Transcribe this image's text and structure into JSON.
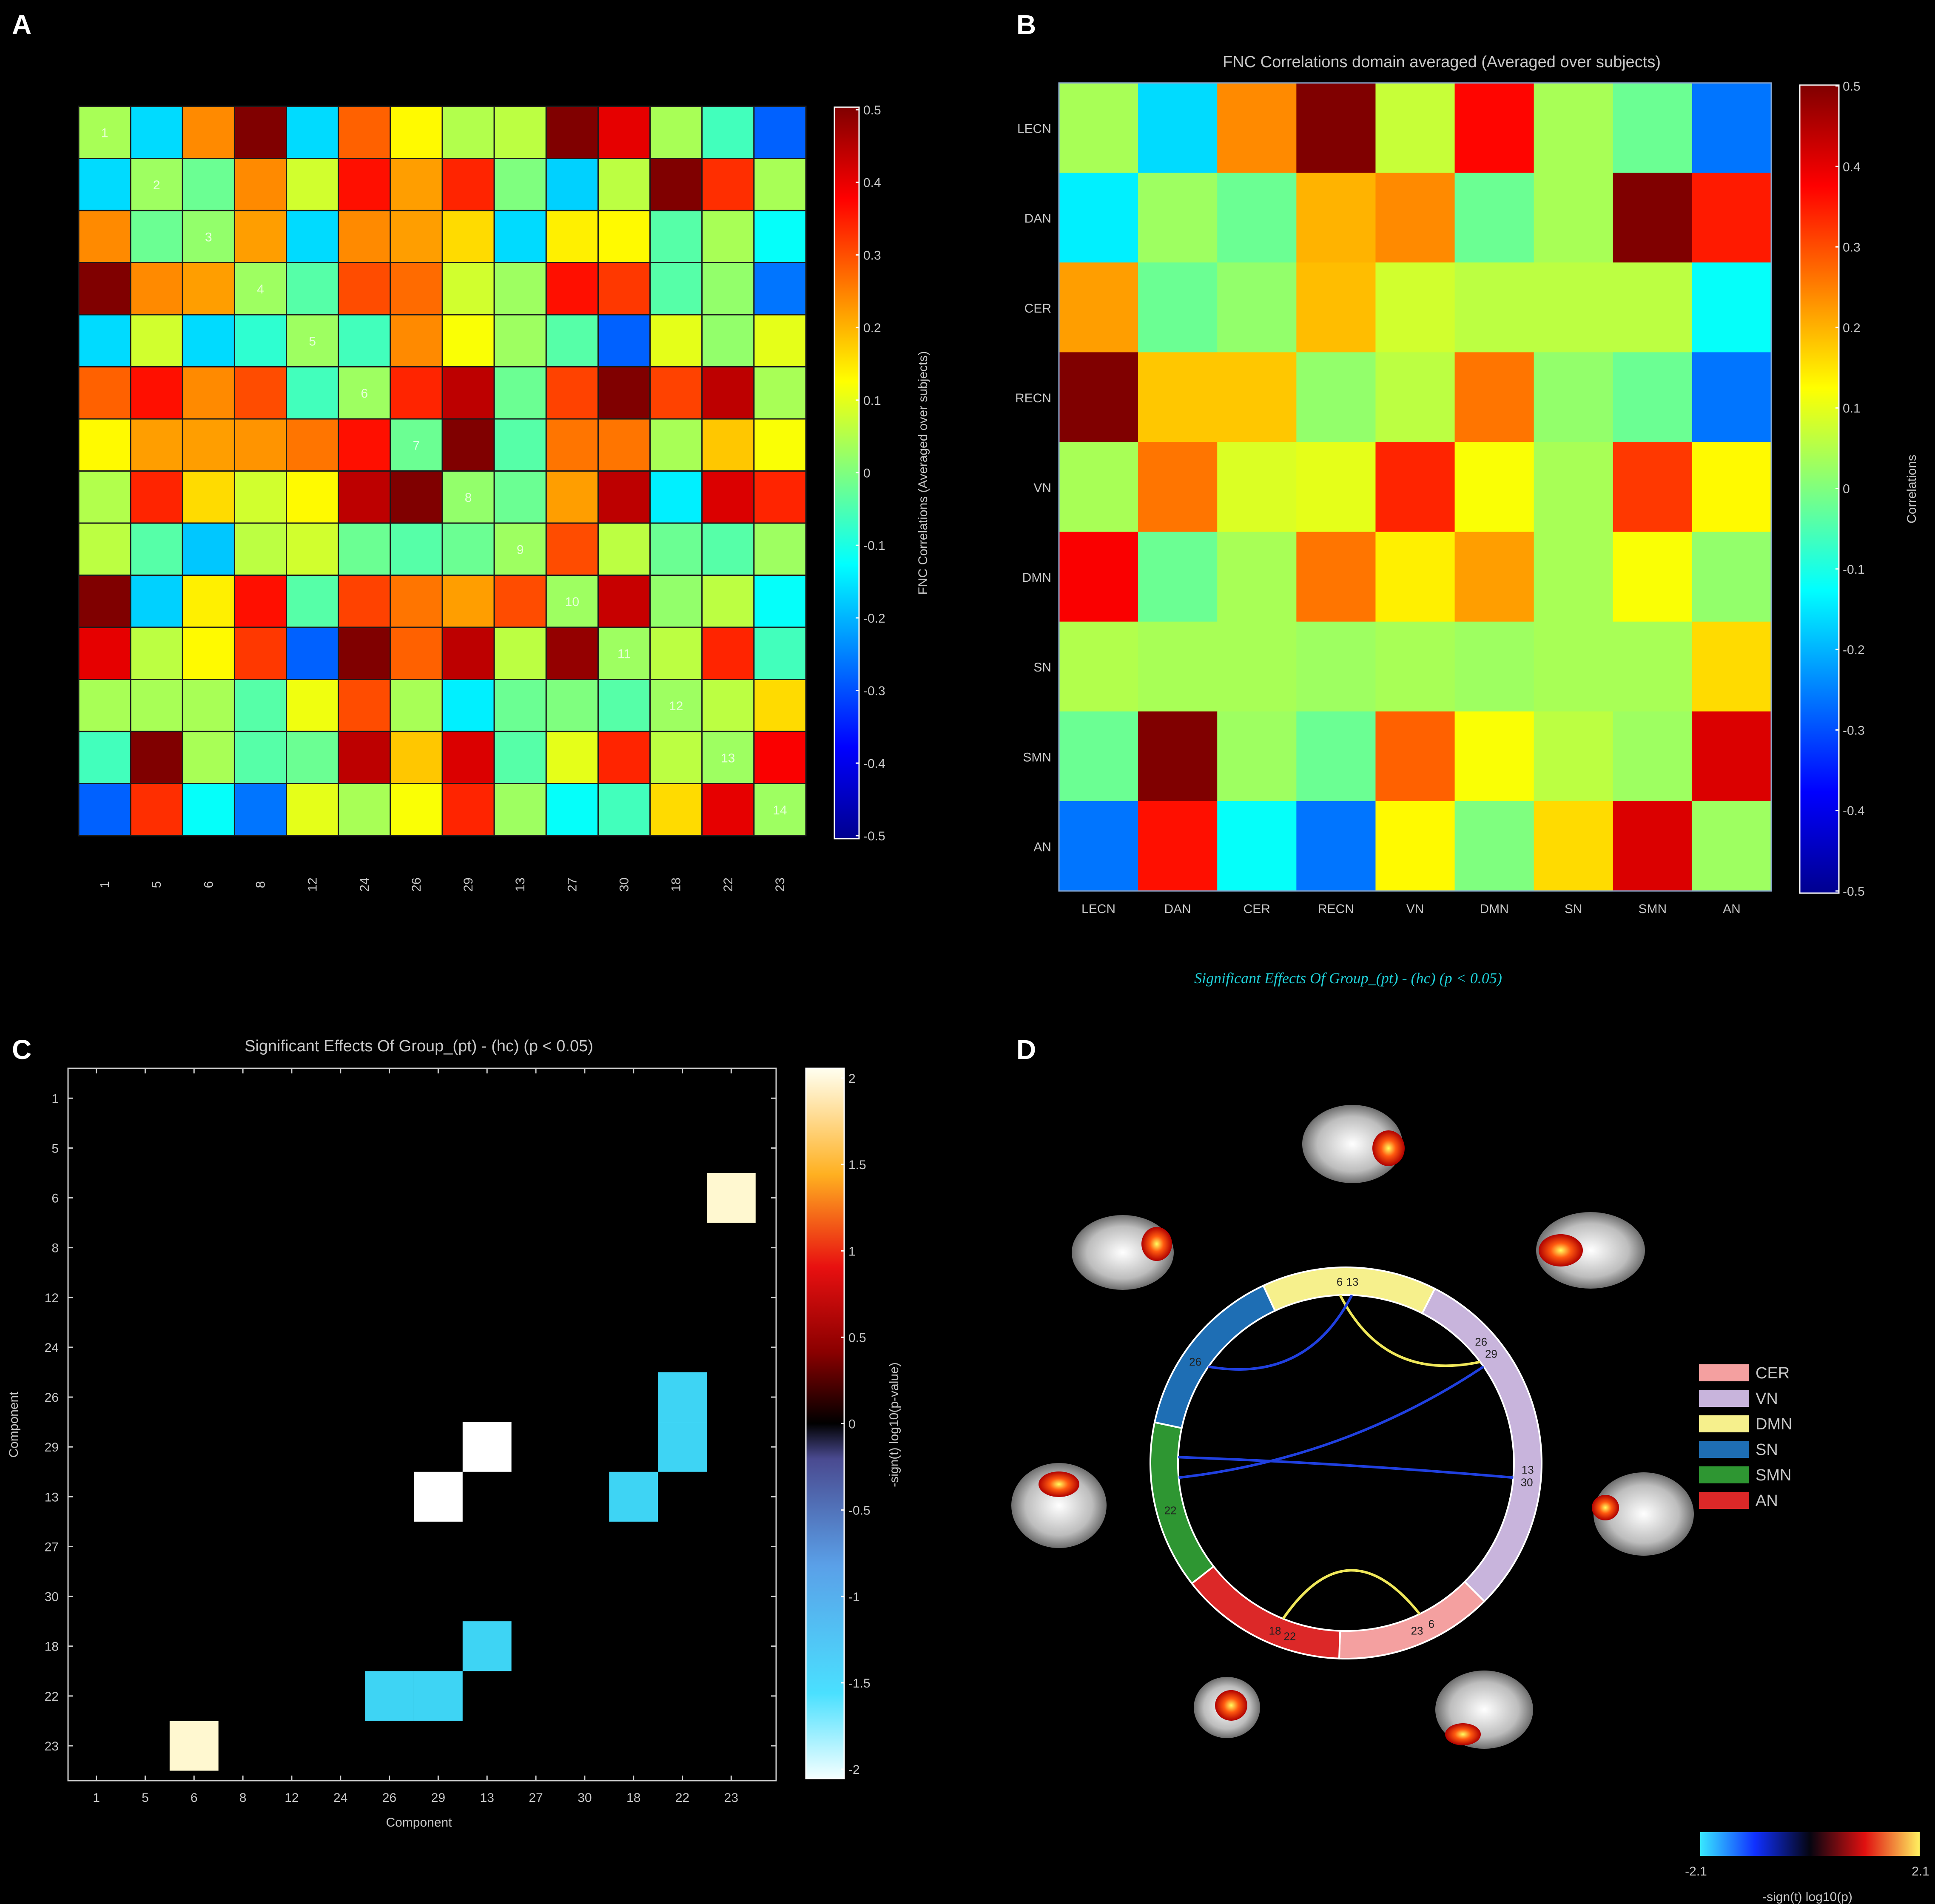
{
  "panels": {
    "a": "A",
    "b": "B",
    "c": "C",
    "d": "D"
  },
  "colors": {
    "background": "#000000",
    "cell_grid_a": "#202020",
    "cell_grid_b": "none"
  },
  "chart_data": [
    {
      "id": "A",
      "type": "heatmap",
      "title": "",
      "components": [
        "1",
        "5",
        "6",
        "8",
        "12",
        "24",
        "26",
        "29",
        "13",
        "27",
        "30",
        "18",
        "22",
        "23"
      ],
      "xlabel": "",
      "ylabel": "",
      "colorbar": {
        "label": "FNC Correlations (Averaged over subjects)",
        "range": [
          -0.5,
          0.5
        ],
        "ticks": [
          "0.5",
          "0.4",
          "0.3",
          "0.2",
          "0.1",
          "0",
          "-0.1",
          "-0.2",
          "-0.3",
          "-0.4",
          "-0.5"
        ],
        "colormap": "jet"
      },
      "diagonal_labels": [
        "1",
        "2",
        "3",
        "4",
        "5",
        "6",
        "7",
        "8",
        "9",
        "10",
        "11",
        "12",
        "13",
        "14"
      ],
      "values": [
        [
          0.04,
          -0.16,
          0.24,
          0.5,
          -0.16,
          0.28,
          0.13,
          0.05,
          0.06,
          0.5,
          0.4,
          0.04,
          -0.06,
          -0.28
        ],
        [
          -0.16,
          0.03,
          -0.02,
          0.24,
          0.08,
          0.36,
          0.22,
          0.34,
          0.0,
          -0.17,
          0.06,
          0.5,
          0.33,
          0.04
        ],
        [
          0.24,
          -0.02,
          0.02,
          0.22,
          -0.16,
          0.24,
          0.22,
          0.16,
          -0.16,
          0.14,
          0.13,
          -0.04,
          0.04,
          -0.12
        ],
        [
          0.5,
          0.24,
          0.22,
          0.03,
          -0.04,
          0.3,
          0.27,
          0.08,
          0.03,
          0.36,
          0.32,
          -0.04,
          0.02,
          -0.26
        ],
        [
          -0.16,
          0.08,
          -0.16,
          -0.08,
          0.03,
          -0.06,
          0.24,
          0.12,
          0.03,
          -0.04,
          -0.28,
          0.1,
          0.02,
          0.1
        ],
        [
          0.28,
          0.36,
          0.24,
          0.3,
          -0.06,
          0.03,
          0.34,
          0.44,
          -0.02,
          0.31,
          0.5,
          0.31,
          0.44,
          0.04
        ],
        [
          0.13,
          0.22,
          0.22,
          0.23,
          0.26,
          0.36,
          -0.02,
          0.5,
          -0.04,
          0.26,
          0.26,
          0.04,
          0.18,
          0.12
        ],
        [
          0.05,
          0.34,
          0.16,
          0.08,
          0.13,
          0.44,
          0.5,
          0.02,
          -0.02,
          0.22,
          0.44,
          -0.14,
          0.41,
          0.34
        ],
        [
          0.06,
          -0.04,
          -0.18,
          0.06,
          0.08,
          -0.02,
          -0.04,
          -0.02,
          0.03,
          0.3,
          0.06,
          -0.02,
          -0.04,
          0.03
        ],
        [
          0.5,
          -0.17,
          0.14,
          0.36,
          -0.04,
          0.31,
          0.26,
          0.22,
          0.3,
          0.03,
          0.43,
          0.02,
          0.06,
          -0.12
        ],
        [
          0.4,
          0.06,
          0.13,
          0.32,
          -0.28,
          0.5,
          0.28,
          0.44,
          0.06,
          0.48,
          0.03,
          0.06,
          0.34,
          -0.06
        ],
        [
          0.04,
          0.04,
          0.04,
          -0.04,
          0.11,
          0.3,
          0.04,
          -0.14,
          -0.02,
          0.0,
          -0.04,
          0.03,
          0.06,
          0.16
        ],
        [
          -0.06,
          0.5,
          0.04,
          -0.04,
          -0.02,
          0.44,
          0.18,
          0.41,
          -0.04,
          0.1,
          0.34,
          0.06,
          0.03,
          0.38
        ],
        [
          -0.28,
          0.33,
          -0.12,
          -0.26,
          0.1,
          0.04,
          0.12,
          0.34,
          0.03,
          -0.12,
          -0.06,
          0.16,
          0.4,
          0.03
        ]
      ]
    },
    {
      "id": "B",
      "type": "heatmap",
      "title": "FNC Correlations domain averaged (Averaged over subjects)",
      "rows": [
        "LECN",
        "DAN",
        "CER",
        "RECN",
        "VN",
        "DMN",
        "SN",
        "SMN",
        "AN"
      ],
      "columns": [
        "LECN",
        "DAN",
        "CER",
        "RECN",
        "VN",
        "DMN",
        "SN",
        "SMN",
        "AN"
      ],
      "colorbar": {
        "label": "Correlations",
        "range": [
          -0.5,
          0.5
        ],
        "ticks": [
          "0.5",
          "0.4",
          "0.3",
          "0.2",
          "0.1",
          "0",
          "-0.1",
          "-0.2",
          "-0.3",
          "-0.4",
          "-0.5"
        ],
        "colormap": "jet"
      },
      "values": [
        [
          0.04,
          -0.16,
          0.24,
          0.5,
          0.07,
          0.37,
          0.04,
          -0.02,
          -0.26
        ],
        [
          -0.14,
          0.03,
          -0.02,
          0.2,
          0.24,
          -0.02,
          0.04,
          0.5,
          0.35
        ],
        [
          0.22,
          -0.02,
          0.02,
          0.19,
          0.08,
          0.06,
          0.06,
          0.06,
          -0.12
        ],
        [
          0.5,
          0.18,
          0.18,
          0.02,
          0.06,
          0.26,
          0.02,
          -0.02,
          -0.26
        ],
        [
          0.04,
          0.26,
          0.09,
          0.1,
          0.34,
          0.12,
          0.04,
          0.32,
          0.13
        ],
        [
          0.38,
          -0.02,
          0.04,
          0.26,
          0.14,
          0.22,
          0.04,
          0.12,
          0.02
        ],
        [
          0.05,
          0.04,
          0.04,
          0.03,
          0.04,
          0.03,
          0.04,
          0.04,
          0.16
        ],
        [
          -0.02,
          0.5,
          0.03,
          -0.02,
          0.28,
          0.12,
          0.06,
          0.03,
          0.41
        ],
        [
          -0.26,
          0.36,
          -0.12,
          -0.26,
          0.13,
          0.0,
          0.16,
          0.41,
          0.03
        ]
      ],
      "caption": "Significant Effects Of Group_(pt) - (hc) (p < 0.05)"
    },
    {
      "id": "C",
      "type": "heatmap",
      "title": "Significant Effects Of Group_(pt) - (hc) (p < 0.05)",
      "xlabel": "Component",
      "ylabel": "Component",
      "components": [
        "1",
        "5",
        "6",
        "8",
        "12",
        "24",
        "26",
        "29",
        "13",
        "27",
        "30",
        "18",
        "22",
        "23"
      ],
      "colorbar": {
        "label": "-sign(t) log10(p-value)",
        "range": [
          -2,
          2
        ],
        "ticks": [
          "2",
          "1.5",
          "1",
          "0.5",
          "0",
          "-0.5",
          "-1",
          "-1.5",
          "-2"
        ],
        "colormap": "hot/cold"
      },
      "cells": [
        {
          "row": "6",
          "col": "23",
          "value": 1.9
        },
        {
          "row": "23",
          "col": "6",
          "value": 1.9
        },
        {
          "row": "29",
          "col": "13",
          "value": -2.0
        },
        {
          "row": "13",
          "col": "29",
          "value": -2.0
        },
        {
          "row": "26",
          "col": "22",
          "value": -1.6
        },
        {
          "row": "29",
          "col": "22",
          "value": -1.6
        },
        {
          "row": "13",
          "col": "18",
          "value": -1.6
        },
        {
          "row": "18",
          "col": "13",
          "value": -1.6
        },
        {
          "row": "22",
          "col": "26",
          "value": -1.6
        },
        {
          "row": "22",
          "col": "29",
          "value": -1.6
        }
      ]
    },
    {
      "id": "D",
      "type": "chord",
      "legend": [
        {
          "label": "CER",
          "color": "#f4a0a0"
        },
        {
          "label": "VN",
          "color": "#c8b4dc"
        },
        {
          "label": "DMN",
          "color": "#f6f08c"
        },
        {
          "label": "SN",
          "color": "#1e6eb4"
        },
        {
          "label": "SMN",
          "color": "#2e9632"
        },
        {
          "label": "AN",
          "color": "#dc2828"
        }
      ],
      "ring_labels": [
        "6",
        "13",
        "26",
        "29",
        "13",
        "30",
        "6",
        "23",
        "22",
        "18",
        "22",
        "26"
      ],
      "colorbar": {
        "min_label": "-2.1",
        "max_label": "2.1",
        "label": "-sign(t) log10(p)"
      }
    }
  ]
}
